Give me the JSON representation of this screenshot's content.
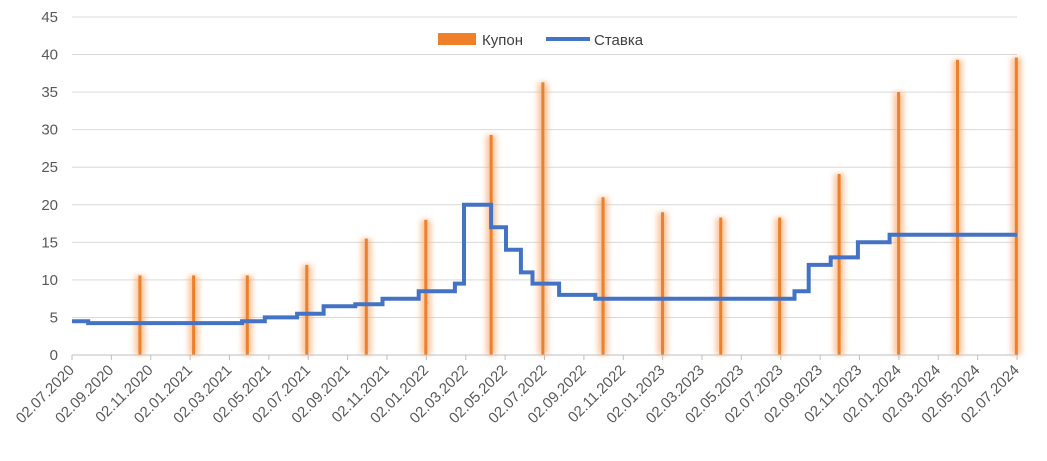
{
  "chart_data": {
    "type": "bar+line",
    "title": "",
    "xlabel": "",
    "ylabel": "",
    "ylim": [
      0,
      45
    ],
    "yticks": [
      0,
      5,
      10,
      15,
      20,
      25,
      30,
      35,
      40,
      45
    ],
    "xlim": [
      "2020-07-02",
      "2024-07-02"
    ],
    "xtick_labels": [
      "02.07.2020",
      "02.09.2020",
      "02.11.2020",
      "02.01.2021",
      "02.03.2021",
      "02.05.2021",
      "02.07.2021",
      "02.09.2021",
      "02.11.2021",
      "02.01.2022",
      "02.03.2022",
      "02.05.2022",
      "02.07.2022",
      "02.09.2022",
      "02.11.2022",
      "02.01.2023",
      "02.03.2023",
      "02.05.2023",
      "02.07.2023",
      "02.09.2023",
      "02.11.2023",
      "02.01.2024",
      "02.03.2024",
      "02.05.2024",
      "02.07.2024"
    ],
    "grid": "horizontal",
    "legend": {
      "placement": "top-center"
    },
    "series": [
      {
        "name": "Купон",
        "type": "bar",
        "color": "#f07f2a",
        "points": [
          {
            "date": "2020-10-15",
            "value": 10.6
          },
          {
            "date": "2021-01-06",
            "value": 10.6
          },
          {
            "date": "2021-03-30",
            "value": 10.6
          },
          {
            "date": "2021-06-30",
            "value": 12.0
          },
          {
            "date": "2021-09-30",
            "value": 15.5
          },
          {
            "date": "2021-12-31",
            "value": 18.0
          },
          {
            "date": "2022-04-11",
            "value": 29.3
          },
          {
            "date": "2022-06-30",
            "value": 36.3
          },
          {
            "date": "2022-10-01",
            "value": 21.0
          },
          {
            "date": "2023-01-01",
            "value": 19.0
          },
          {
            "date": "2023-04-01",
            "value": 18.3
          },
          {
            "date": "2023-07-01",
            "value": 18.3
          },
          {
            "date": "2023-10-01",
            "value": 24.1
          },
          {
            "date": "2024-01-01",
            "value": 35.0
          },
          {
            "date": "2024-04-01",
            "value": 39.3
          },
          {
            "date": "2024-07-01",
            "value": 39.6
          }
        ]
      },
      {
        "name": "Ставка",
        "type": "step-line",
        "color": "#4472c4",
        "points": [
          {
            "date": "2020-07-02",
            "value": 4.5
          },
          {
            "date": "2020-07-27",
            "value": 4.25
          },
          {
            "date": "2021-03-22",
            "value": 4.5
          },
          {
            "date": "2021-04-26",
            "value": 5.0
          },
          {
            "date": "2021-06-15",
            "value": 5.5
          },
          {
            "date": "2021-07-26",
            "value": 6.5
          },
          {
            "date": "2021-09-13",
            "value": 6.75
          },
          {
            "date": "2021-10-25",
            "value": 7.5
          },
          {
            "date": "2021-12-20",
            "value": 8.5
          },
          {
            "date": "2022-02-14",
            "value": 9.5
          },
          {
            "date": "2022-02-28",
            "value": 20.0
          },
          {
            "date": "2022-04-11",
            "value": 17.0
          },
          {
            "date": "2022-05-04",
            "value": 14.0
          },
          {
            "date": "2022-05-27",
            "value": 11.0
          },
          {
            "date": "2022-06-14",
            "value": 9.5
          },
          {
            "date": "2022-07-25",
            "value": 8.0
          },
          {
            "date": "2022-09-19",
            "value": 7.5
          },
          {
            "date": "2023-07-24",
            "value": 8.5
          },
          {
            "date": "2023-08-15",
            "value": 12.0
          },
          {
            "date": "2023-09-18",
            "value": 13.0
          },
          {
            "date": "2023-10-30",
            "value": 15.0
          },
          {
            "date": "2023-12-18",
            "value": 16.0
          },
          {
            "date": "2024-07-02",
            "value": 16.0
          }
        ]
      }
    ]
  }
}
